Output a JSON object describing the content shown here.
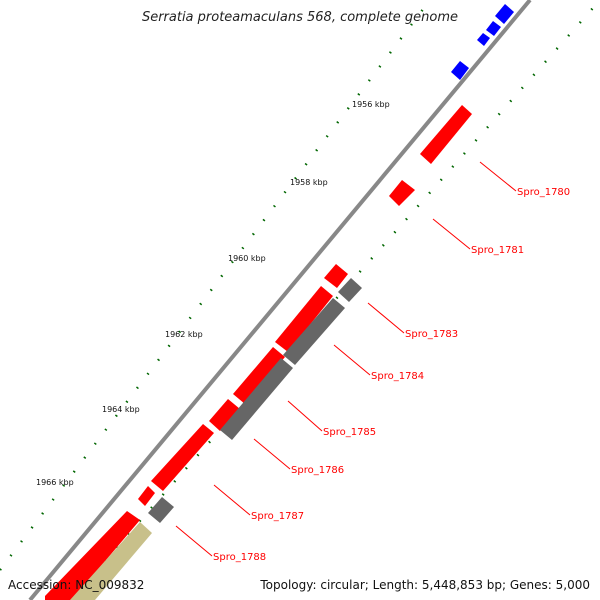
{
  "header": {
    "title": "Serratia proteamaculans 568, complete genome"
  },
  "footer": {
    "accession": "Accession: NC_009832",
    "summary": "Topology: circular; Length: 5,448,853 bp; Genes: 5,000"
  },
  "ticks": [
    "1956 kbp",
    "1958 kbp",
    "1960 kbp",
    "1962 kbp",
    "1964 kbp",
    "1966 kbp"
  ],
  "genes": [
    "Spro_1780",
    "Spro_1781",
    "Spro_1783",
    "Spro_1784",
    "Spro_1785",
    "Spro_1786",
    "Spro_1787",
    "Spro_1788"
  ],
  "colors": {
    "forward_cds": "#ff0000",
    "reverse_cds": "#666666",
    "blue_feature": "#0000ff",
    "khaki_feature": "#c8c08a",
    "backbone": "#888888",
    "dots": "#006600",
    "label": "#ff0000"
  }
}
